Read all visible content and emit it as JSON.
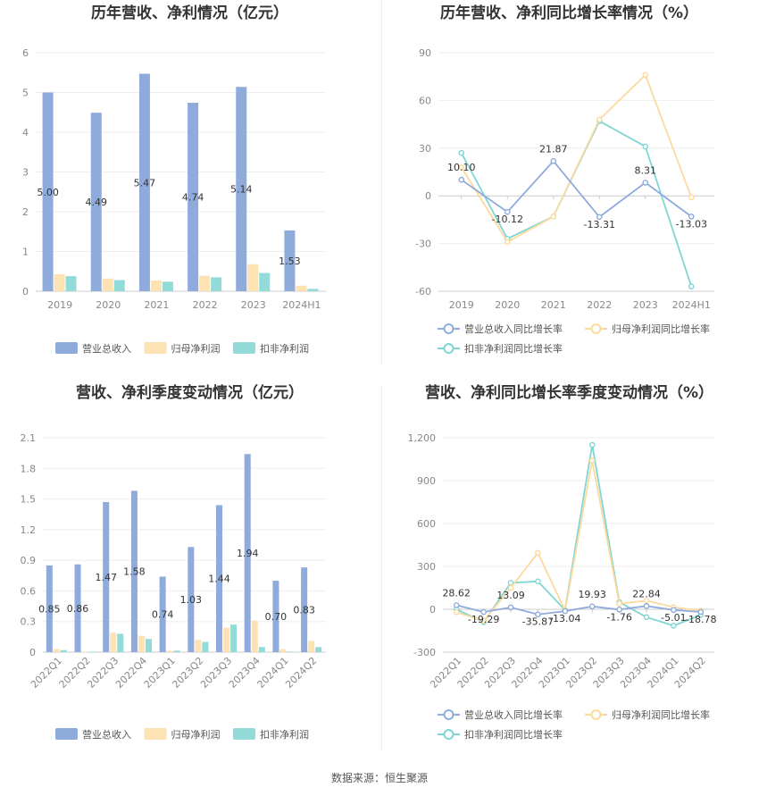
{
  "source": "数据来源：恒生聚源",
  "colors": {
    "revenue": "#8eabdc",
    "netprofit": "#fde2b4",
    "deducted": "#93dbd9",
    "rev_line": "#8eabdc",
    "np_line": "#fcd99c",
    "ded_line": "#7fd6d3"
  },
  "chart_data": [
    {
      "id": "annual-bars",
      "type": "bar",
      "title": "历年营收、净利情况（亿元）",
      "categories": [
        "2019",
        "2020",
        "2021",
        "2022",
        "2023",
        "2024H1"
      ],
      "ylim": [
        0,
        6
      ],
      "yticks": [
        "0",
        "1",
        "2",
        "3",
        "4",
        "5",
        "6"
      ],
      "series": [
        {
          "name": "营业总收入",
          "values": [
            5.0,
            4.49,
            5.47,
            4.74,
            5.14,
            1.53
          ],
          "labels": [
            "5.00",
            "4.49",
            "5.47",
            "4.74",
            "5.14",
            "1.53"
          ]
        },
        {
          "name": "归母净利润",
          "values": [
            0.43,
            0.32,
            0.27,
            0.39,
            0.68,
            0.14
          ]
        },
        {
          "name": "扣非净利润",
          "values": [
            0.38,
            0.28,
            0.24,
            0.35,
            0.46,
            0.06
          ]
        }
      ]
    },
    {
      "id": "annual-growth",
      "type": "line",
      "title": "历年营收、净利同比增长率情况（%）",
      "categories": [
        "2019",
        "2020",
        "2021",
        "2022",
        "2023",
        "2024H1"
      ],
      "ylim": [
        -60,
        90
      ],
      "yticks": [
        "-60",
        "-30",
        "0",
        "30",
        "60",
        "90"
      ],
      "series": [
        {
          "name": "营业总收入同比增长率",
          "values": [
            10.1,
            -10.12,
            21.87,
            -13.31,
            8.31,
            -13.03
          ],
          "labels": [
            "10.10",
            "-10.12",
            "21.87",
            "-13.31",
            "8.31",
            "-13.03"
          ]
        },
        {
          "name": "归母净利润同比增长率",
          "values": [
            18,
            -29,
            -13,
            48,
            76,
            -1
          ]
        },
        {
          "name": "扣非净利润同比增长率",
          "values": [
            27,
            -27,
            -13,
            47,
            31,
            -57
          ]
        }
      ]
    },
    {
      "id": "quarterly-bars",
      "type": "bar",
      "title": "营收、净利季度变动情况（亿元）",
      "categories": [
        "2022Q1",
        "2022Q2",
        "2022Q3",
        "2022Q4",
        "2023Q1",
        "2023Q2",
        "2023Q3",
        "2023Q4",
        "2024Q1",
        "2024Q2"
      ],
      "ylim": [
        0,
        2.1
      ],
      "yticks": [
        "0",
        "0.3",
        "0.6",
        "0.9",
        "1.2",
        "1.5",
        "1.8",
        "2.1"
      ],
      "series": [
        {
          "name": "营业总收入",
          "values": [
            0.85,
            0.86,
            1.47,
            1.58,
            0.74,
            1.03,
            1.44,
            1.94,
            0.7,
            0.83
          ],
          "labels": [
            "0.85",
            "0.86",
            "1.47",
            "1.58",
            "0.74",
            "1.03",
            "1.44",
            "1.94",
            "0.70",
            "0.83"
          ]
        },
        {
          "name": "归母净利润",
          "values": [
            0.03,
            0.005,
            0.19,
            0.16,
            0.015,
            0.12,
            0.24,
            0.31,
            0.03,
            0.11
          ]
        },
        {
          "name": "扣非净利润",
          "values": [
            0.02,
            0.005,
            0.18,
            0.13,
            0.015,
            0.1,
            0.27,
            0.05,
            0.005,
            0.05
          ]
        }
      ]
    },
    {
      "id": "quarterly-growth",
      "type": "line",
      "title": "营收、净利同比增长率季度变动情况（%）",
      "categories": [
        "2022Q1",
        "2022Q2",
        "2022Q3",
        "2022Q4",
        "2023Q1",
        "2023Q2",
        "2023Q3",
        "2023Q4",
        "2024Q1",
        "2024Q2"
      ],
      "ylim": [
        -300,
        1200
      ],
      "yticks": [
        "-300",
        "0",
        "300",
        "600",
        "900",
        "1,200"
      ],
      "series": [
        {
          "name": "营业总收入同比增长率",
          "values": [
            28.62,
            -19.29,
            13.09,
            -35.87,
            -13.04,
            19.93,
            -1.76,
            22.84,
            -5.01,
            -18.78
          ],
          "labels": [
            "28.62",
            "-19.29",
            "13.09",
            "-35.87",
            "-13.04",
            "19.93",
            "-1.76",
            "22.84",
            "-5.01",
            "-18.78"
          ]
        },
        {
          "name": "归母净利润同比增长率",
          "values": [
            -20,
            -80,
            150,
            395,
            -10,
            1040,
            40,
            60,
            15,
            -10
          ]
        },
        {
          "name": "扣非净利润同比增长率",
          "values": [
            0,
            -90,
            185,
            195,
            -5,
            1150,
            50,
            -55,
            -115,
            -40
          ]
        }
      ]
    }
  ]
}
